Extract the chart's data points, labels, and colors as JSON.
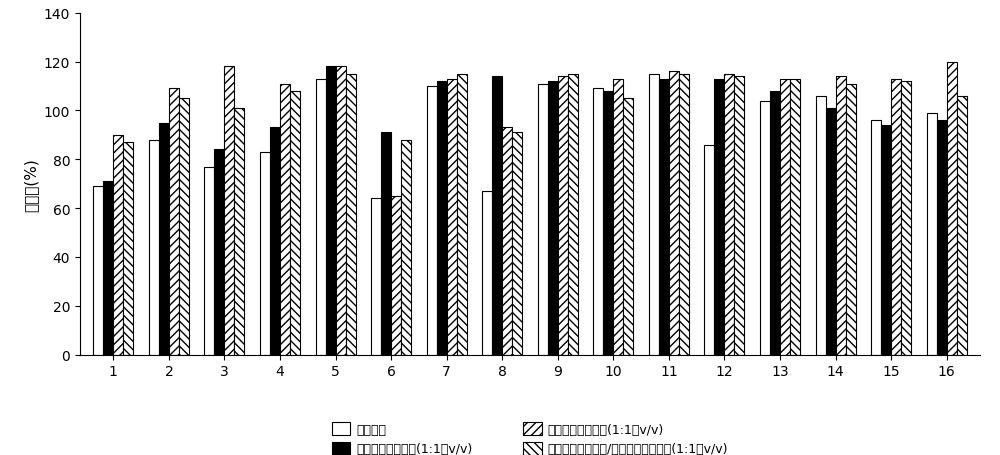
{
  "categories": [
    1,
    2,
    3,
    4,
    5,
    6,
    7,
    8,
    9,
    10,
    11,
    12,
    13,
    14,
    15,
    16
  ],
  "series": {
    "DCM": [
      69,
      88,
      77,
      83,
      113,
      64,
      110,
      67,
      111,
      109,
      115,
      86,
      104,
      106,
      96,
      99
    ],
    "hex_DCM": [
      71,
      95,
      84,
      93,
      118,
      91,
      112,
      114,
      112,
      108,
      113,
      113,
      108,
      101,
      94,
      96
    ],
    "hex_EA": [
      90,
      109,
      118,
      111,
      118,
      65,
      113,
      93,
      114,
      113,
      116,
      115,
      113,
      114,
      113,
      120
    ],
    "hex_DCM_EA": [
      87,
      105,
      101,
      108,
      115,
      88,
      115,
      91,
      115,
      105,
      115,
      114,
      113,
      111,
      112,
      106
    ]
  },
  "ylabel": "回收率(%)",
  "ylim": [
    0,
    140
  ],
  "yticks": [
    0,
    20,
    40,
    60,
    80,
    100,
    120,
    140
  ],
  "legend_labels": [
    "二氯甲烷",
    "正己烷：二氯甲烷(1:1，v/v)",
    "正己烷：乙酸乙酯(1:1，v/v)",
    "正己烷：二氯甲烷/正己烷：乙酸乙酯(1:1，v/v)"
  ],
  "bar_colors": [
    "white",
    "black",
    "white",
    "white"
  ],
  "hatches": [
    "",
    "",
    "////",
    "\\\\\\\\"
  ],
  "edgecolors": [
    "black",
    "black",
    "black",
    "black"
  ],
  "bar_width": 0.18,
  "figsize": [
    10.0,
    4.56
  ],
  "dpi": 100
}
